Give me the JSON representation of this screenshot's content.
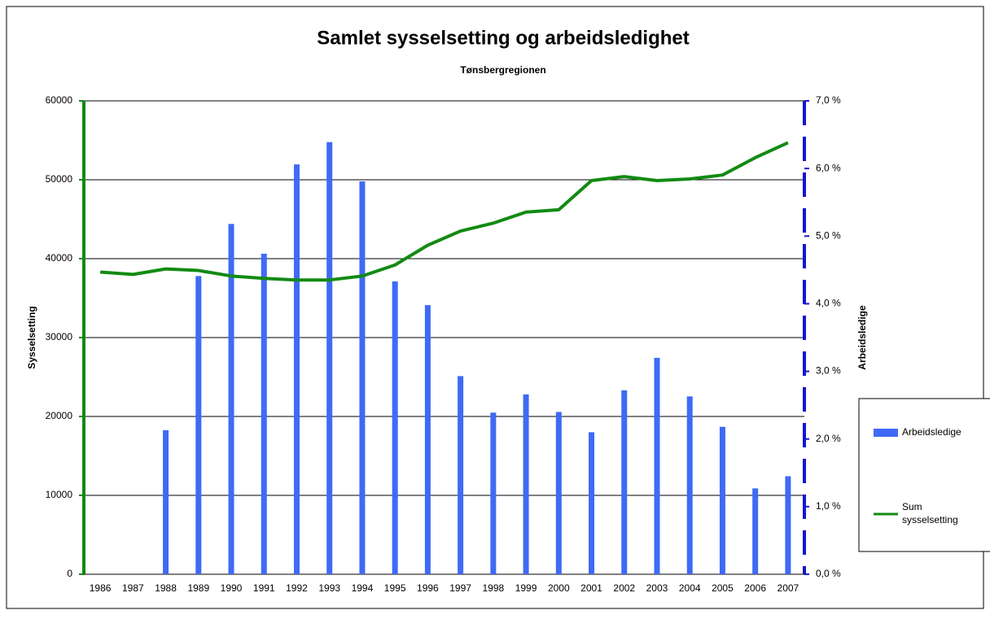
{
  "chart_data": {
    "type": "bar_line",
    "title": "Samlet sysselsetting og arbeidsledighet",
    "subtitle": "Tønsbergregionen",
    "y_label": "Sysselsetting",
    "y2_label": "Arbeidsledige",
    "categories": [
      "1986",
      "1987",
      "1988",
      "1989",
      "1990",
      "1991",
      "1992",
      "1993",
      "1994",
      "1995",
      "1996",
      "1997",
      "1998",
      "1999",
      "2000",
      "2001",
      "2002",
      "2003",
      "2004",
      "2005",
      "2006",
      "2007"
    ],
    "series": [
      {
        "name": "Arbeidsledige",
        "type": "bar",
        "axis": "y2",
        "color": "#3f6af5",
        "values": [
          null,
          null,
          2.13,
          4.41,
          5.18,
          4.74,
          6.06,
          6.39,
          5.81,
          4.33,
          3.98,
          2.93,
          2.39,
          2.66,
          2.4,
          2.1,
          2.72,
          3.2,
          2.63,
          2.18,
          1.27,
          1.45
        ]
      },
      {
        "name": "Sum sysselsetting",
        "type": "line",
        "axis": "y",
        "color": "#138a13",
        "values": [
          38300,
          38000,
          38700,
          38500,
          37800,
          37500,
          37300,
          37300,
          37800,
          39200,
          41700,
          43500,
          44500,
          45900,
          46200,
          49900,
          50400,
          49900,
          50100,
          50600,
          52800,
          54700
        ]
      }
    ],
    "ylim": [
      0,
      60000
    ],
    "yticks": [
      0,
      10000,
      20000,
      30000,
      40000,
      50000,
      60000
    ],
    "y2lim": [
      0,
      7
    ],
    "y2ticks": [
      {
        "value": 0,
        "label": "0,0 %"
      },
      {
        "value": 1,
        "label": "1,0 %"
      },
      {
        "value": 2,
        "label": "2,0 %"
      },
      {
        "value": 3,
        "label": "3,0 %"
      },
      {
        "value": 4,
        "label": "4,0 %"
      },
      {
        "value": 5,
        "label": "5,0 %"
      },
      {
        "value": 6,
        "label": "6,0 %"
      },
      {
        "value": 7,
        "label": "7,0 %"
      }
    ],
    "grid": true,
    "legend": "right"
  }
}
